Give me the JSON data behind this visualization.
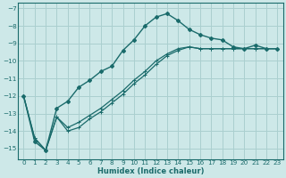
{
  "xlabel": "Humidex (Indice chaleur)",
  "bg_color": "#cde8e8",
  "grid_color": "#aacfcf",
  "line_color": "#1a6b6b",
  "xlim": [
    -0.5,
    23.5
  ],
  "ylim": [
    -15.6,
    -6.7
  ],
  "yticks": [
    -7,
    -8,
    -9,
    -10,
    -11,
    -12,
    -13,
    -14,
    -15
  ],
  "xticks": [
    0,
    1,
    2,
    3,
    4,
    5,
    6,
    7,
    8,
    9,
    10,
    11,
    12,
    13,
    14,
    15,
    16,
    17,
    18,
    19,
    20,
    21,
    22,
    23
  ],
  "s1_x": [
    0,
    1,
    2,
    3,
    4,
    5,
    6,
    7,
    8,
    9,
    10,
    11,
    12,
    13,
    14,
    15,
    16,
    17,
    18,
    19,
    20,
    21,
    22,
    23
  ],
  "s1_y": [
    -12.0,
    -14.6,
    -15.1,
    -12.7,
    -12.3,
    -11.5,
    -11.1,
    -10.6,
    -10.3,
    -9.4,
    -8.8,
    -8.0,
    -7.5,
    -7.3,
    -7.7,
    -8.2,
    -8.5,
    -8.7,
    -8.8,
    -9.2,
    -9.3,
    -9.1,
    -9.3,
    -9.3
  ],
  "s2_x": [
    0,
    1,
    2,
    3,
    4,
    5,
    6,
    7,
    8,
    9,
    10,
    11,
    12,
    13,
    14,
    15,
    16,
    17,
    18,
    19,
    20,
    21,
    22,
    23
  ],
  "s2_y": [
    -12.0,
    -14.4,
    -15.1,
    -13.2,
    -13.8,
    -13.5,
    -13.1,
    -12.7,
    -12.2,
    -11.7,
    -11.1,
    -10.6,
    -10.0,
    -9.6,
    -9.3,
    -9.2,
    -9.3,
    -9.3,
    -9.3,
    -9.3,
    -9.3,
    -9.3,
    -9.3,
    -9.3
  ],
  "s3_x": [
    0,
    1,
    2,
    3,
    4,
    5,
    6,
    7,
    8,
    9,
    10,
    11,
    12,
    13,
    14,
    15,
    16,
    17,
    18,
    19,
    20,
    21,
    22,
    23
  ],
  "s3_y": [
    -12.0,
    -14.4,
    -15.1,
    -13.2,
    -14.0,
    -13.8,
    -13.3,
    -12.9,
    -12.4,
    -11.9,
    -11.3,
    -10.8,
    -10.2,
    -9.7,
    -9.4,
    -9.2,
    -9.3,
    -9.3,
    -9.3,
    -9.3,
    -9.3,
    -9.3,
    -9.3,
    -9.3
  ]
}
